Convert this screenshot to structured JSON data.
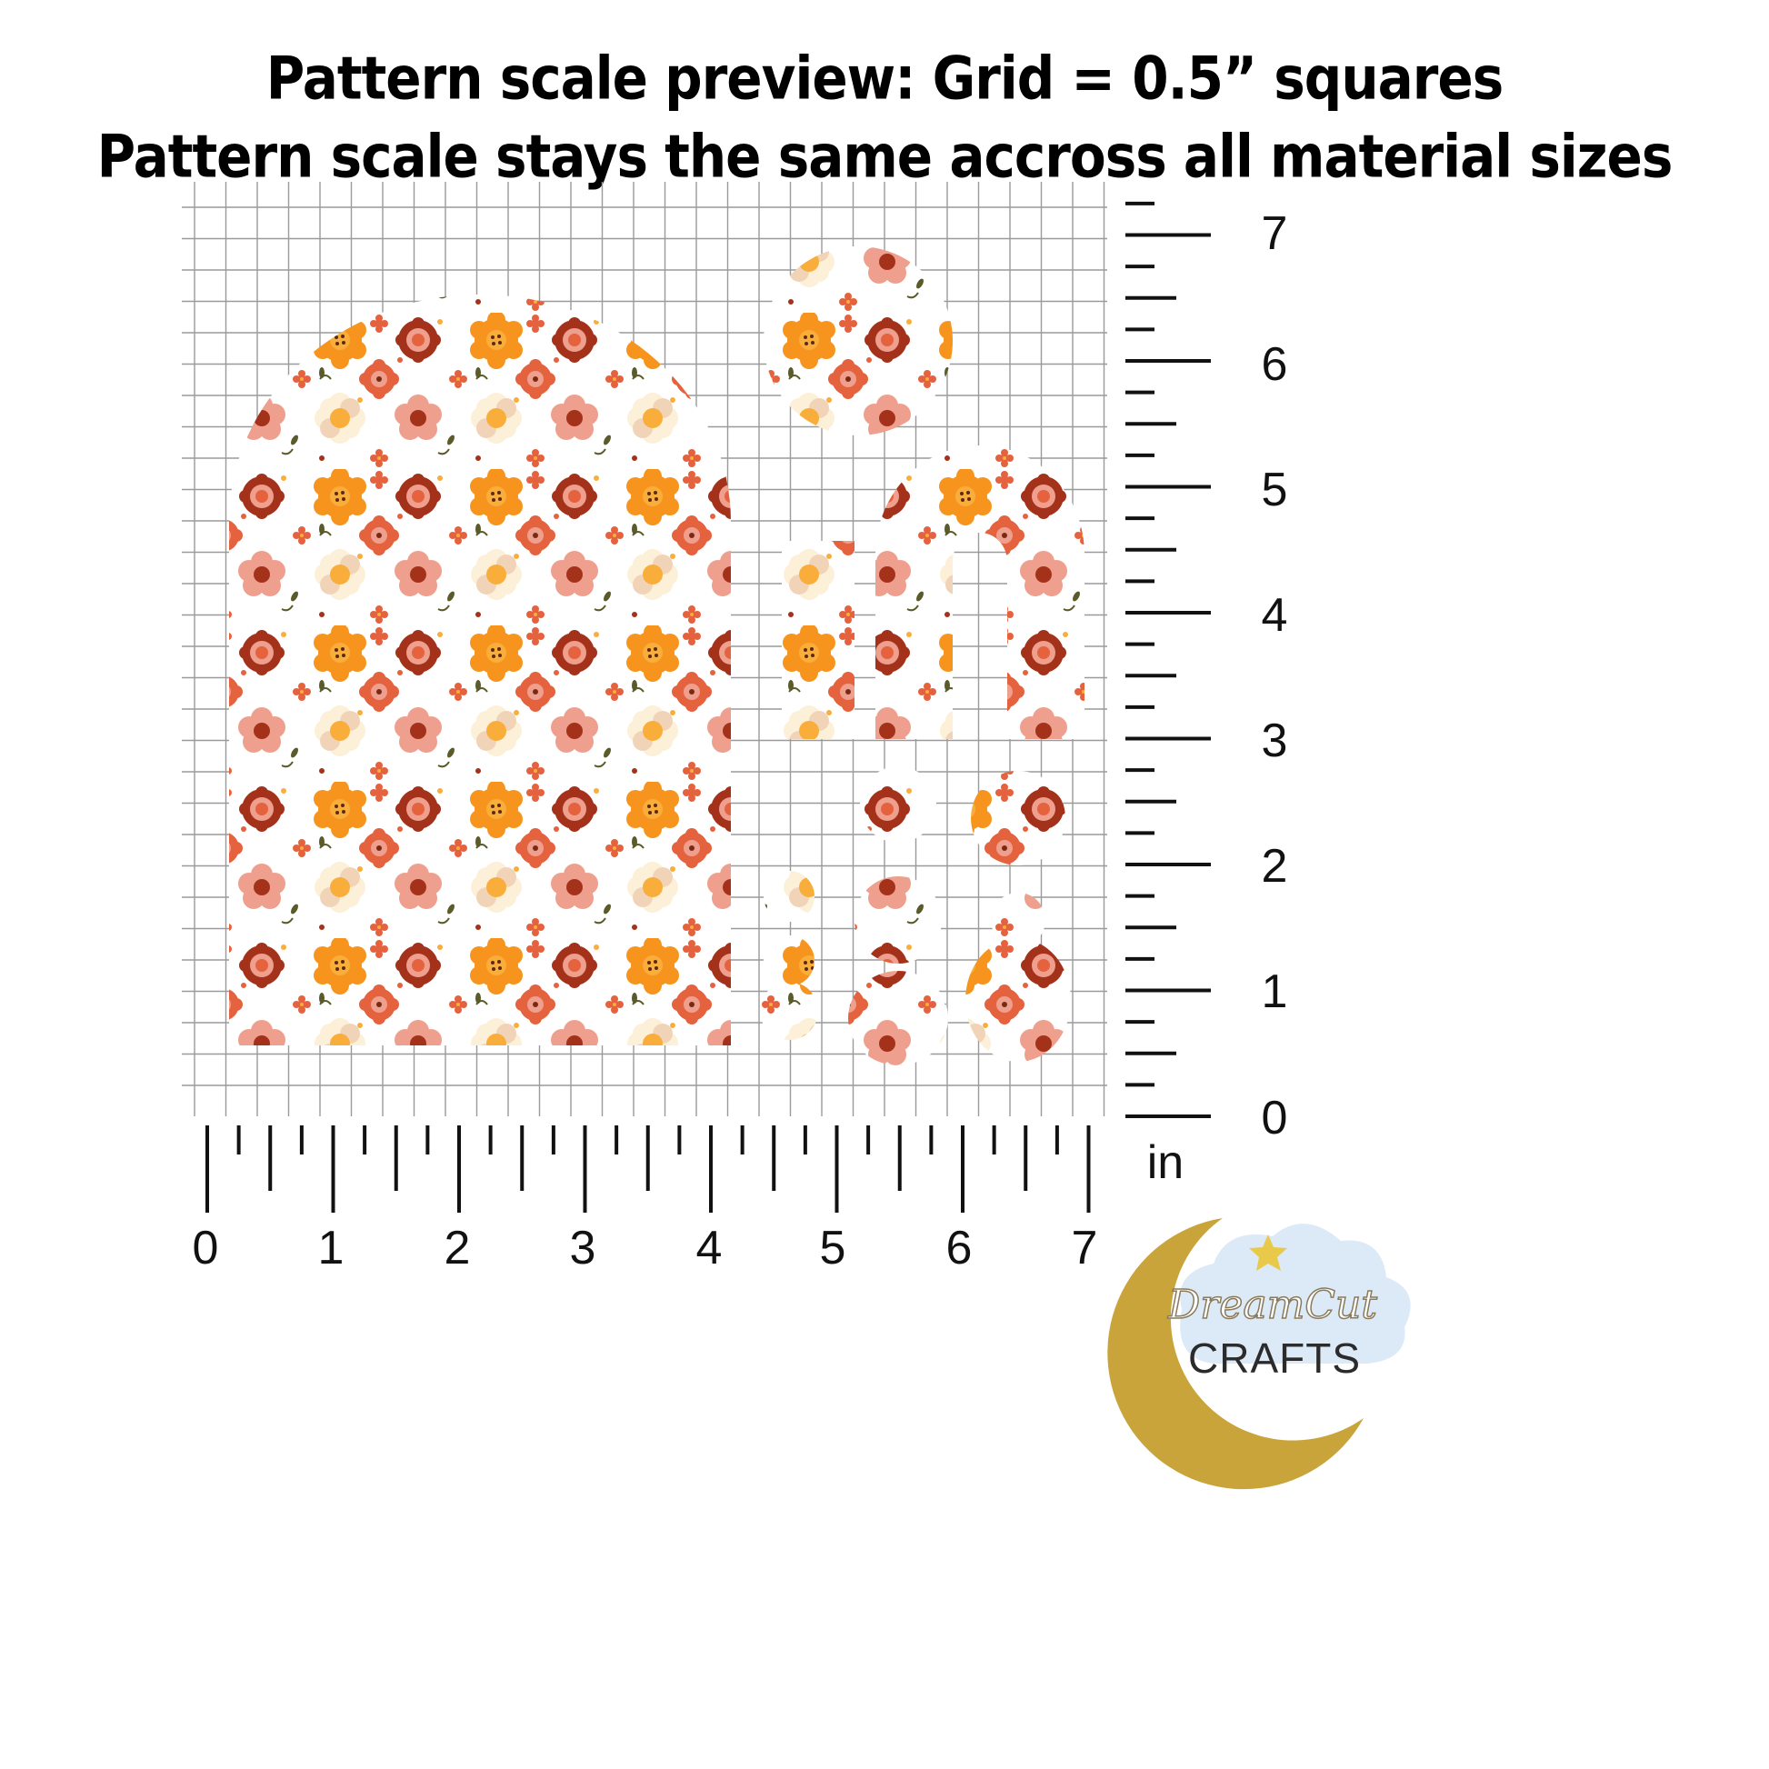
{
  "header": {
    "line1": "Pattern scale preview: Grid = 0.5” squares",
    "line2": "Pattern scale stays the same accross all material sizes"
  },
  "ruler": {
    "bottom_labels": [
      "0",
      "1",
      "2",
      "3",
      "4",
      "5",
      "6",
      "7"
    ],
    "right_labels": [
      "0",
      "1",
      "2",
      "3",
      "4",
      "5",
      "6",
      "7"
    ],
    "unit": "in"
  },
  "grid": {
    "square_size_in": 0.5
  },
  "pattern": {
    "name_icon": "floral-pattern-icon",
    "colors": {
      "orange": "#f7941d",
      "light-orange": "#f9ae3b",
      "coral": "#e5623f",
      "rust": "#a4321b",
      "pink": "#ef9f8d",
      "beige": "#f1d4b7",
      "cream": "#fdf0d8",
      "leaf": "#5b5a2a"
    }
  },
  "logo": {
    "line1": "DreamCut",
    "line2": "CRAFTS",
    "colors": {
      "moon": "#c9a43a",
      "cloud": "#dce9f6",
      "star": "#e9c94a",
      "text": "#2b2b2b"
    }
  }
}
